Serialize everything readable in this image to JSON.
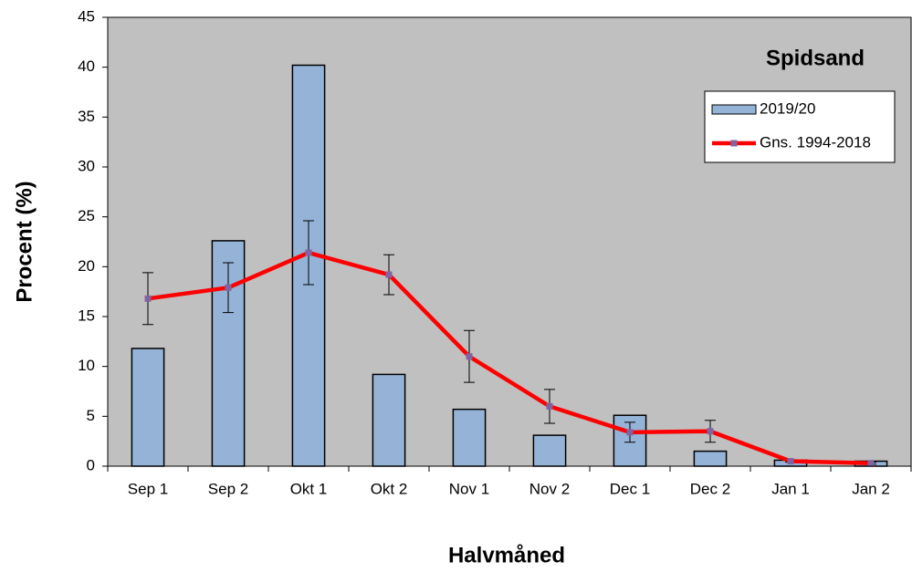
{
  "chart_data": {
    "type": "bar",
    "title": "Spidsand",
    "xlabel": "Halvmåned",
    "ylabel": "Procent (%)",
    "categories": [
      "Sep 1",
      "Sep 2",
      "Okt 1",
      "Okt 2",
      "Nov 1",
      "Nov 2",
      "Dec 1",
      "Dec 2",
      "Jan 1",
      "Jan 2"
    ],
    "series": [
      {
        "name": "2019/20",
        "type": "bar",
        "color": "#95b3d7",
        "values": [
          11.8,
          22.6,
          40.2,
          9.2,
          5.7,
          3.1,
          5.1,
          1.5,
          0.6,
          0.5
        ]
      },
      {
        "name": "Gns. 1994-2018",
        "type": "line",
        "color": "#ff0000",
        "marker_color": "#8064a2",
        "values": [
          16.8,
          17.9,
          21.4,
          19.2,
          11.0,
          6.0,
          3.4,
          3.5,
          0.5,
          0.3
        ],
        "errors": [
          2.6,
          2.5,
          3.2,
          2.0,
          2.6,
          1.7,
          1.0,
          1.1,
          0.1,
          0.1
        ]
      }
    ],
    "ylim": [
      0,
      45
    ],
    "yticks": [
      0,
      5,
      10,
      15,
      20,
      25,
      30,
      35,
      40,
      45
    ],
    "plot_background": "#c0c0c0",
    "legend": "upper right"
  }
}
